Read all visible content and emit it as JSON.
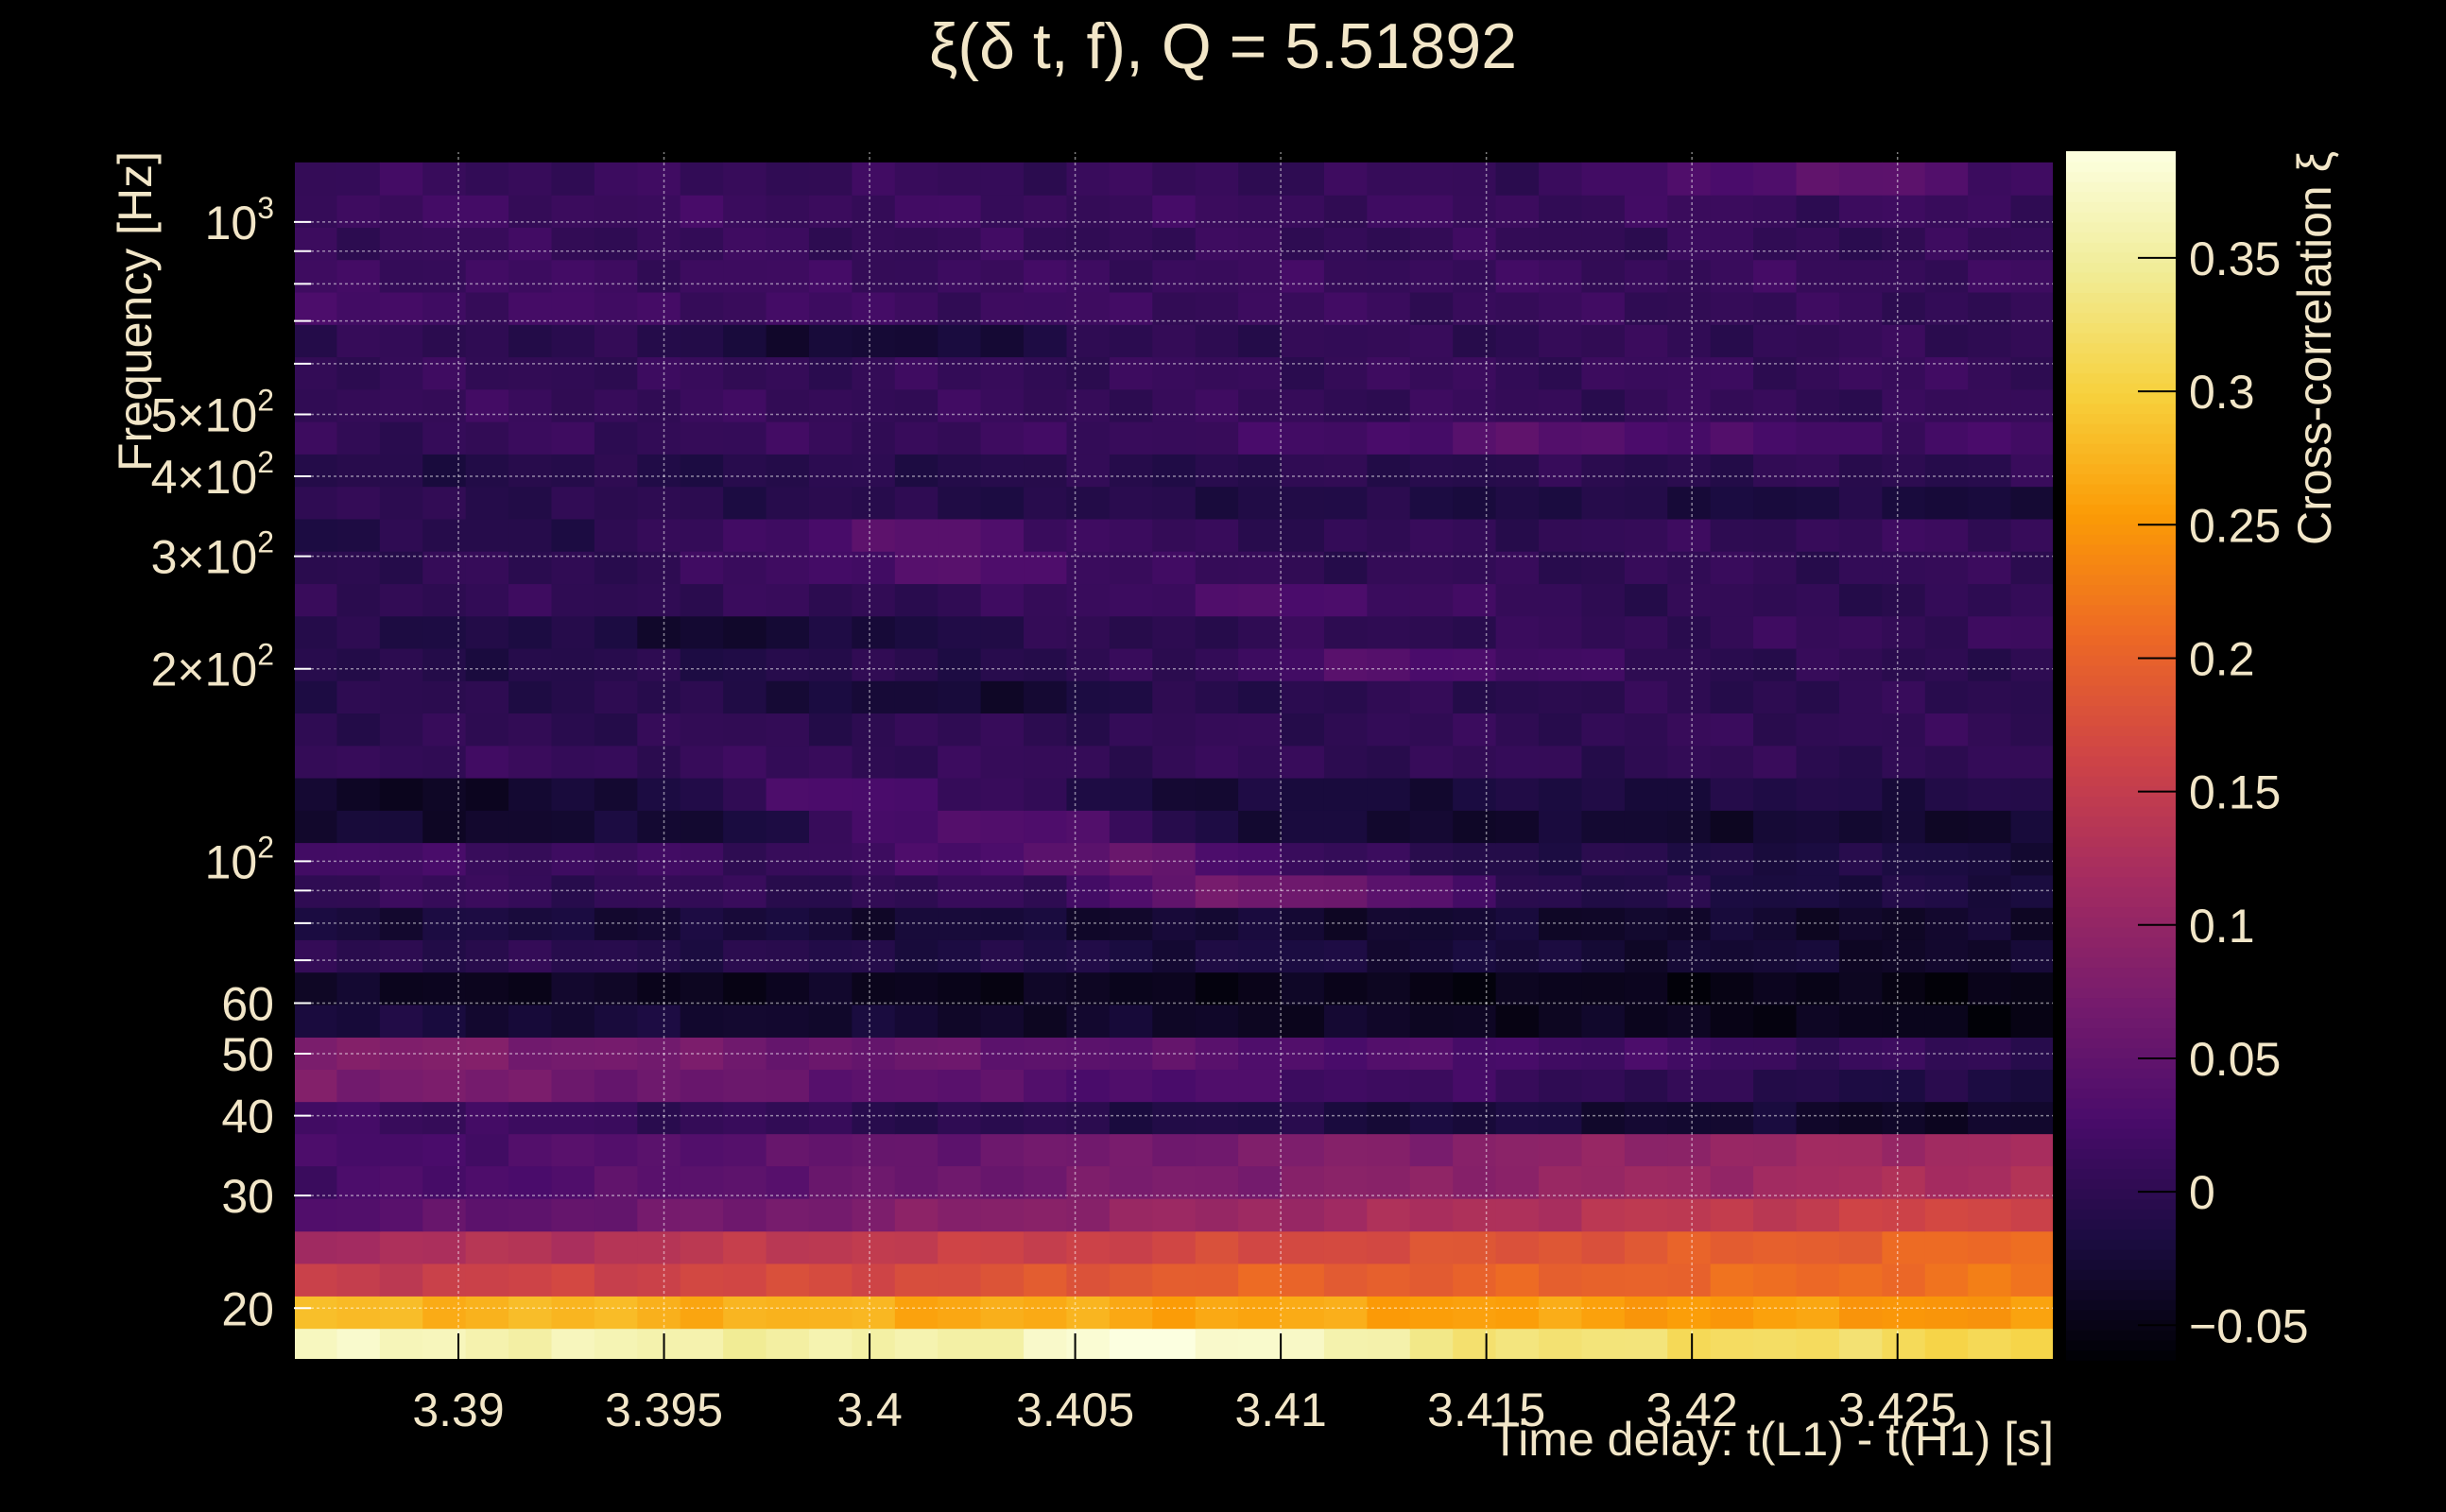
{
  "chart_data": {
    "type": "heatmap",
    "title": "ξ(δ t, f), Q = 5.51892",
    "xlabel": "Time delay: t(L1) - t(H1) [s]",
    "ylabel": "Frequency [Hz]",
    "colorbar_label": "Cross-correlation ξ",
    "x_range": [
      3.386,
      3.4288
    ],
    "y_range": [
      16.6,
      1290
    ],
    "y_scale": "log",
    "x_ticks": [
      "3.39",
      "3.395",
      "3.4",
      "3.405",
      "3.41",
      "3.415",
      "3.42",
      "3.425"
    ],
    "x_tick_values": [
      3.39,
      3.395,
      3.4,
      3.405,
      3.41,
      3.415,
      3.42,
      3.425
    ],
    "y_ticks": [
      {
        "value": 20,
        "label": "20"
      },
      {
        "value": 30,
        "label": "30"
      },
      {
        "value": 40,
        "label": "40"
      },
      {
        "value": 50,
        "label": "50"
      },
      {
        "value": 60,
        "label": "60"
      },
      {
        "value": 100,
        "label": "10",
        "sup": "2"
      },
      {
        "value": 200,
        "label": "2×10",
        "sup": "2"
      },
      {
        "value": 300,
        "label": "3×10",
        "sup": "2"
      },
      {
        "value": 400,
        "label": "4×10",
        "sup": "2"
      },
      {
        "value": 500,
        "label": "5×10",
        "sup": "2"
      },
      {
        "value": 1000,
        "label": "10",
        "sup": "3"
      }
    ],
    "colorbar_range": [
      -0.063,
      0.39
    ],
    "colorbar_ticks": [
      "−0.05",
      "0",
      "0.05",
      "0.1",
      "0.15",
      "0.2",
      "0.25",
      "0.3",
      "0.35"
    ],
    "colorbar_tick_values": [
      -0.05,
      0,
      0.05,
      0.1,
      0.15,
      0.2,
      0.25,
      0.3,
      0.35
    ],
    "grid": true,
    "colormap": "inferno",
    "row_band_edges_hz": [
      16.6,
      18.6,
      20.9,
      23.5,
      26.4,
      29.7,
      33.4,
      37.5,
      42.1,
      47.3,
      53.1,
      59.7,
      67.1,
      75.4,
      84.7,
      95.2,
      107,
      120.2,
      135.1,
      151.8,
      170.6,
      191.7,
      215.4,
      242,
      271.9,
      305.6,
      343.4,
      385.9,
      433.7,
      487.3,
      547.6,
      615.4,
      691.5,
      777.1,
      873.2,
      981.2,
      1102.6,
      1239
    ],
    "rows": [
      {
        "f": 17.6,
        "left": 0.37,
        "right": 0.31,
        "peak": 0.39,
        "peak_x": 3.4075
      },
      {
        "f": 19.8,
        "left": 0.28,
        "right": 0.25
      },
      {
        "f": 22.2,
        "left": 0.15,
        "right": 0.22,
        "peak": 0.2,
        "peak_x": 3.41
      },
      {
        "f": 25.0,
        "left": 0.12,
        "right": 0.21
      },
      {
        "f": 28.1,
        "left": 0.035,
        "right": 0.17
      },
      {
        "f": 31.6,
        "left": 0.02,
        "right": 0.13
      },
      {
        "f": 35.5,
        "left": 0.02,
        "right": 0.12
      },
      {
        "f": 39.8,
        "left": 0.02,
        "right": -0.04
      },
      {
        "f": 44.7,
        "left": 0.08,
        "right": -0.02
      },
      {
        "f": 50.2,
        "left": 0.085,
        "right": 0.0
      },
      {
        "f": 56.4,
        "left": -0.02,
        "right": -0.05
      },
      {
        "f": 63.3,
        "left": -0.04,
        "right": -0.05
      },
      {
        "f": 71.2,
        "left": 0.0,
        "right": -0.035
      },
      {
        "f": 80.0,
        "left": -0.02,
        "right": -0.035
      },
      {
        "f": 89.8,
        "left": 0.01,
        "right": -0.02,
        "peak": 0.07,
        "peak_x": 3.41
      },
      {
        "f": 101.0,
        "left": 0.02,
        "right": -0.02,
        "peak": 0.05,
        "peak_x": 3.406
      },
      {
        "f": 113.4,
        "left": -0.03,
        "right": -0.03,
        "peak": 0.04,
        "peak_x": 3.403
      },
      {
        "f": 127.4,
        "left": -0.04,
        "right": -0.01,
        "peak": 0.03,
        "peak_x": 3.4
      },
      {
        "f": 143.2,
        "left": 0.01,
        "right": 0.0
      },
      {
        "f": 160.9,
        "left": 0.0,
        "right": 0.005
      },
      {
        "f": 180.8,
        "left": -0.005,
        "right": 0.0,
        "peak": -0.03,
        "peak_x": 3.402
      },
      {
        "f": 203.1,
        "left": -0.01,
        "right": 0.0,
        "peak": 0.035,
        "peak_x": 3.413
      },
      {
        "f": 228.3,
        "left": -0.01,
        "right": 0.01,
        "peak": -0.03,
        "peak_x": 3.397
      },
      {
        "f": 256.5,
        "left": 0.005,
        "right": 0.0,
        "peak": 0.03,
        "peak_x": 3.41
      },
      {
        "f": 288.2,
        "left": 0.0,
        "right": 0.005,
        "peak": 0.035,
        "peak_x": 3.402
      },
      {
        "f": 323.9,
        "left": -0.01,
        "right": 0.01,
        "peak": 0.04,
        "peak_x": 3.401
      },
      {
        "f": 364.0,
        "left": 0.0,
        "right": -0.02
      },
      {
        "f": 409.0,
        "left": -0.01,
        "right": 0.0
      },
      {
        "f": 459.6,
        "left": 0.005,
        "right": 0.02,
        "peak": 0.04,
        "peak_x": 3.4165
      },
      {
        "f": 516.5,
        "left": 0.01,
        "right": 0.005
      },
      {
        "f": 580.4,
        "left": 0.005,
        "right": 0.01
      },
      {
        "f": 652.3,
        "left": 0.0,
        "right": 0.005,
        "peak": -0.03,
        "peak_x": 3.4
      },
      {
        "f": 733.0,
        "left": 0.02,
        "right": 0.005
      },
      {
        "f": 823.7,
        "left": 0.015,
        "right": 0.01
      },
      {
        "f": 925.6,
        "left": 0.01,
        "right": 0.005
      },
      {
        "f": 1040.1,
        "left": 0.015,
        "right": 0.01
      },
      {
        "f": 1168.8,
        "left": 0.01,
        "right": 0.005,
        "peak": 0.045,
        "peak_x": 3.4235
      }
    ]
  }
}
